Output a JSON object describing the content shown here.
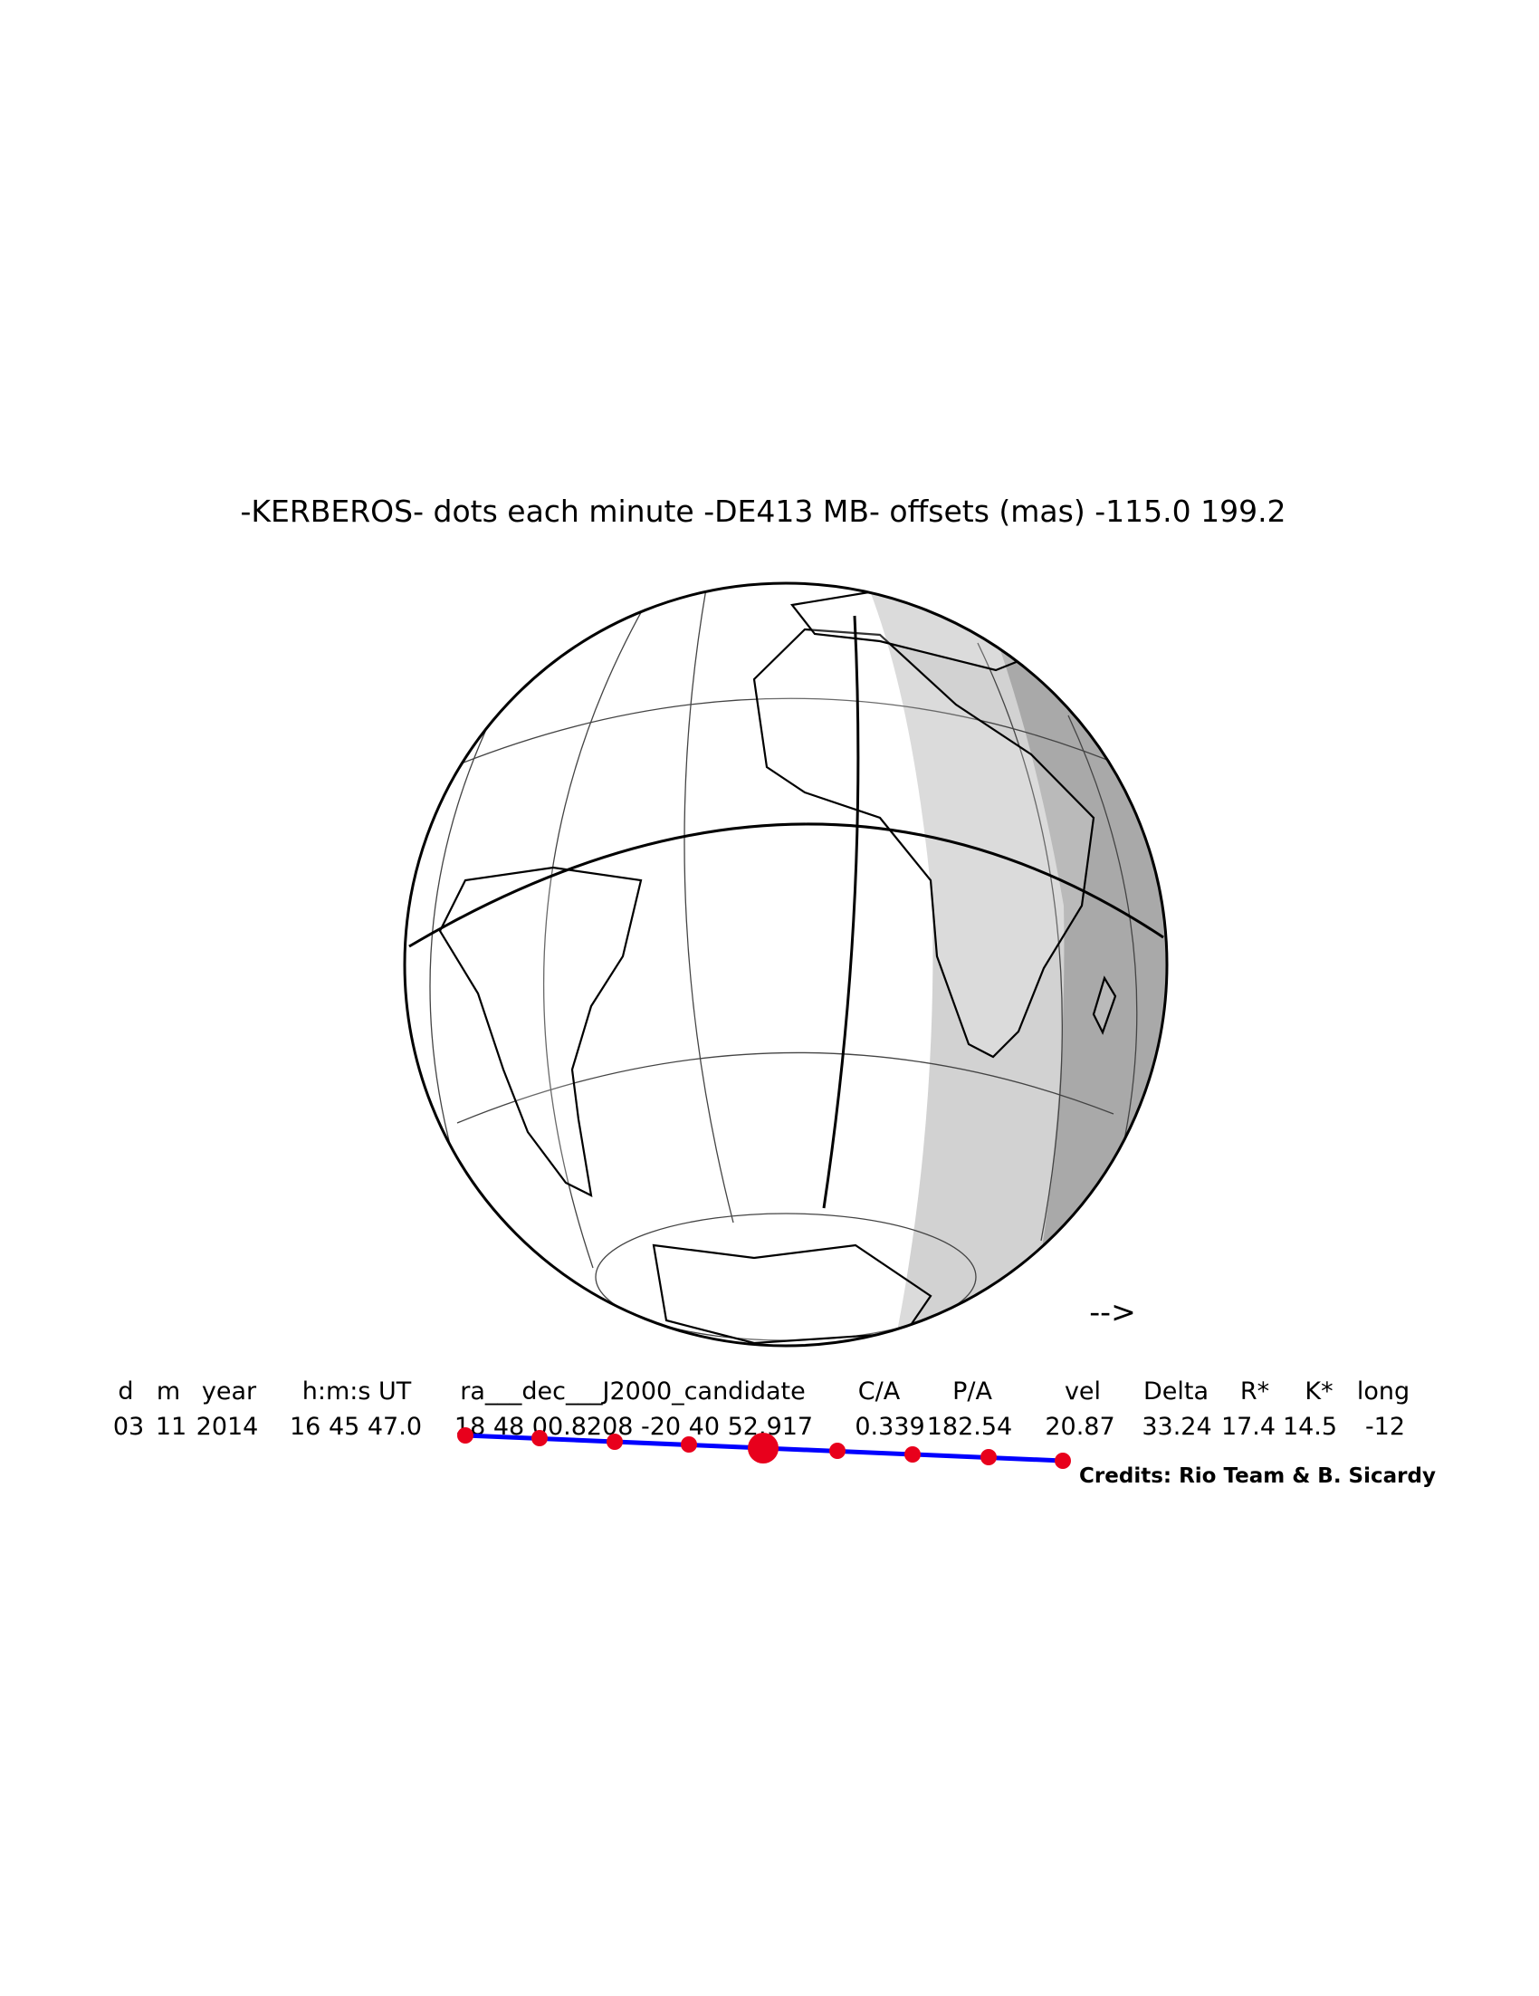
{
  "title": "-KERBEROS- dots each minute -DE413 MB- offsets (mas) -115.0  199.2",
  "direction_arrow": "-->",
  "table": {
    "headers": [
      "d",
      "m",
      "year",
      "h:m:s UT",
      "ra___dec___J2000_candidate",
      "C/A",
      "P/A",
      "vel",
      "Delta",
      "R*",
      "K*",
      "long"
    ],
    "rows": [
      [
        "03",
        "11",
        "2014",
        "16 45 47.0",
        "18 48 00.8208 -20 40 52.917",
        "0.339",
        "182.54",
        "20.87",
        "33.24",
        "17.4",
        "14.5",
        "-12"
      ]
    ]
  },
  "credits": "Credits: Rio Team & B. Sicardy"
}
